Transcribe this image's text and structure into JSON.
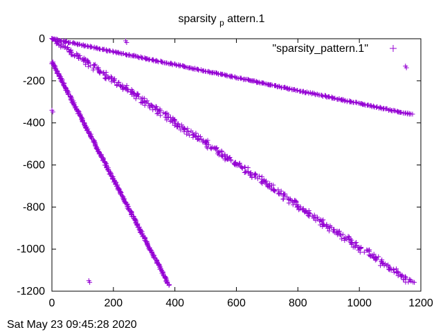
{
  "chart_data": {
    "type": "scatter",
    "title_main": "sparsity",
    "title_sub": "p",
    "title_rest": "attern.1",
    "xlim": [
      0,
      1200
    ],
    "ylim": [
      -1200,
      0
    ],
    "x_ticks": [
      0,
      200,
      400,
      600,
      800,
      1000,
      1200
    ],
    "y_ticks": [
      0,
      -200,
      -400,
      -600,
      -800,
      -1000,
      -1200
    ],
    "x_tick_labels": [
      "0",
      "200",
      "400",
      "600",
      "800",
      "1000",
      "1200"
    ],
    "y_tick_labels": [
      "0",
      "-200",
      "-400",
      "-600",
      "-800",
      "-1000",
      "-1200"
    ],
    "grid": false,
    "legend_position": "top-right",
    "series": [
      {
        "name": "\"sparsity_pattern.1\"",
        "color": "#9400d3",
        "marker": "plus",
        "bands": [
          {
            "label": "main diagonal",
            "x_start": 0,
            "y_start": 0,
            "x_end": 1170,
            "y_end": -1160,
            "width": 22
          },
          {
            "label": "upper band",
            "x_start": 0,
            "y_start": 0,
            "x_end": 1170,
            "y_end": -360,
            "width": 6
          },
          {
            "label": "lower band",
            "x_start": 0,
            "y_start": -110,
            "x_end": 380,
            "y_end": -1170,
            "width": 6
          }
        ],
        "isolated_points": [
          {
            "x": 0,
            "y": -340
          },
          {
            "x": 120,
            "y": -1150
          },
          {
            "x": 240,
            "y": -10
          },
          {
            "x": 1150,
            "y": -130
          }
        ]
      }
    ]
  },
  "timestamp": "Sat May 23 09:45:28 2020"
}
